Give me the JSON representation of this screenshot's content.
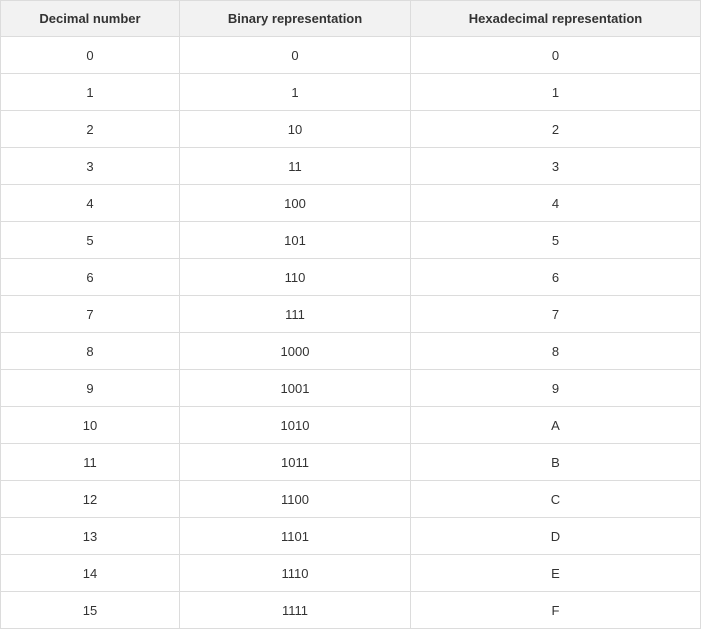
{
  "table": {
    "headers": [
      "Decimal number",
      "Binary representation",
      "Hexadecimal representation"
    ],
    "rows": [
      [
        "0",
        "0",
        "0"
      ],
      [
        "1",
        "1",
        "1"
      ],
      [
        "2",
        "10",
        "2"
      ],
      [
        "3",
        "11",
        "3"
      ],
      [
        "4",
        "100",
        "4"
      ],
      [
        "5",
        "101",
        "5"
      ],
      [
        "6",
        "110",
        "6"
      ],
      [
        "7",
        "111",
        "7"
      ],
      [
        "8",
        "1000",
        "8"
      ],
      [
        "9",
        "1001",
        "9"
      ],
      [
        "10",
        "1010",
        "A"
      ],
      [
        "11",
        "1011",
        "B"
      ],
      [
        "12",
        "1100",
        "C"
      ],
      [
        "13",
        "1101",
        "D"
      ],
      [
        "14",
        "1110",
        "E"
      ],
      [
        "15",
        "1111",
        "F"
      ]
    ]
  }
}
